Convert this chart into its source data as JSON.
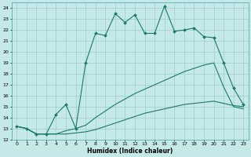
{
  "bg_color": "#c5e8e8",
  "grid_color": "#9ecece",
  "line_color": "#1a7a6a",
  "xlabel": "Humidex (Indice chaleur)",
  "xlim": [
    -0.5,
    23.5
  ],
  "ylim": [
    12,
    24.5
  ],
  "yticks": [
    12,
    13,
    14,
    15,
    16,
    17,
    18,
    19,
    20,
    21,
    22,
    23,
    24
  ],
  "xticks": [
    0,
    1,
    2,
    3,
    4,
    5,
    6,
    7,
    8,
    9,
    10,
    11,
    12,
    13,
    14,
    15,
    16,
    17,
    18,
    19,
    20,
    21,
    22,
    23
  ],
  "curve1_x": [
    0,
    1,
    2,
    3,
    4,
    5,
    6,
    7,
    8,
    9,
    10,
    11,
    12,
    13,
    14,
    15,
    16,
    17,
    18,
    19,
    20,
    21,
    22,
    23
  ],
  "curve1_y": [
    13.2,
    13.0,
    12.5,
    12.5,
    14.3,
    15.2,
    13.0,
    19.0,
    21.7,
    21.5,
    23.5,
    22.7,
    23.4,
    21.7,
    21.7,
    24.2,
    21.9,
    22.0,
    22.2,
    21.4,
    21.3,
    19.0,
    16.7,
    15.2
  ],
  "curve2_x": [
    0,
    1,
    2,
    3,
    4,
    5,
    6,
    7,
    8,
    9,
    10,
    11,
    12,
    13,
    14,
    15,
    16,
    17,
    18,
    19,
    20,
    21,
    22,
    23
  ],
  "curve2_y": [
    13.2,
    13.0,
    12.5,
    12.5,
    12.5,
    12.8,
    13.0,
    13.3,
    14.0,
    14.6,
    15.2,
    15.7,
    16.2,
    16.6,
    17.0,
    17.4,
    17.8,
    18.2,
    18.5,
    18.8,
    19.0,
    16.8,
    15.0,
    14.8
  ],
  "curve3_x": [
    0,
    1,
    2,
    3,
    4,
    5,
    6,
    7,
    8,
    9,
    10,
    11,
    12,
    13,
    14,
    15,
    16,
    17,
    18,
    19,
    20,
    21,
    22,
    23
  ],
  "curve3_y": [
    13.2,
    13.0,
    12.5,
    12.5,
    12.5,
    12.5,
    12.6,
    12.7,
    12.9,
    13.2,
    13.5,
    13.8,
    14.1,
    14.4,
    14.6,
    14.8,
    15.0,
    15.2,
    15.3,
    15.4,
    15.5,
    15.3,
    15.1,
    15.0
  ]
}
